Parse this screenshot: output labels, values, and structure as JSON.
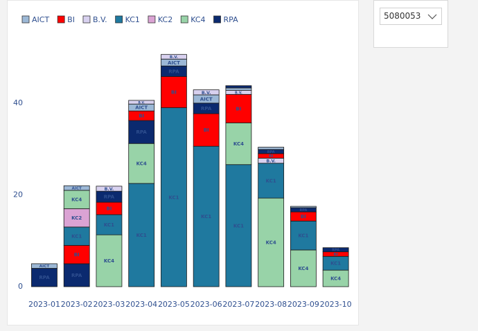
{
  "chart_data": {
    "type": "stacked_bar",
    "categories": [
      "2023-01",
      "2023-02",
      "2023-03",
      "2023-04",
      "2023-05",
      "2023-06",
      "2023-07",
      "2023-08",
      "2023-09",
      "2023-10"
    ],
    "series": [
      {
        "name": "AICT",
        "color": "#9cb8d6",
        "values": [
          1,
          1,
          null,
          1.5,
          1.5,
          1.8,
          0.5,
          0.5,
          0.3,
          null
        ]
      },
      {
        "name": "BI",
        "color": "#ff0000",
        "values": [
          null,
          4,
          2.7,
          2.1,
          6.8,
          7.1,
          6.2,
          1,
          2,
          1
        ]
      },
      {
        "name": "B.V.",
        "color": "#d8d1ef",
        "values": [
          null,
          null,
          1.1,
          0.8,
          1,
          1.1,
          0.9,
          1.1,
          null,
          null
        ]
      },
      {
        "name": "KC1",
        "color": "#1f799f",
        "values": [
          null,
          4,
          4.4,
          22.5,
          39,
          30.6,
          26.6,
          7.6,
          6.3,
          3
        ]
      },
      {
        "name": "KC2",
        "color": "#dba3d4",
        "values": [
          null,
          4,
          null,
          null,
          null,
          null,
          null,
          null,
          null,
          null
        ]
      },
      {
        "name": "KC4",
        "color": "#98d3a8",
        "values": [
          null,
          4,
          11.3,
          8.7,
          null,
          null,
          9.1,
          19.3,
          8,
          3.6
        ]
      },
      {
        "name": "RPA",
        "color": "#0b2a6f",
        "values": [
          4,
          5,
          2.4,
          5,
          2.3,
          2.3,
          0.5,
          0.9,
          0.9,
          0.9
        ]
      }
    ],
    "ylim": [
      0,
      55
    ],
    "yticks": [
      0,
      20,
      40
    ],
    "grid": false,
    "legend": "top-left"
  },
  "slicer": {
    "value": "5080053"
  }
}
